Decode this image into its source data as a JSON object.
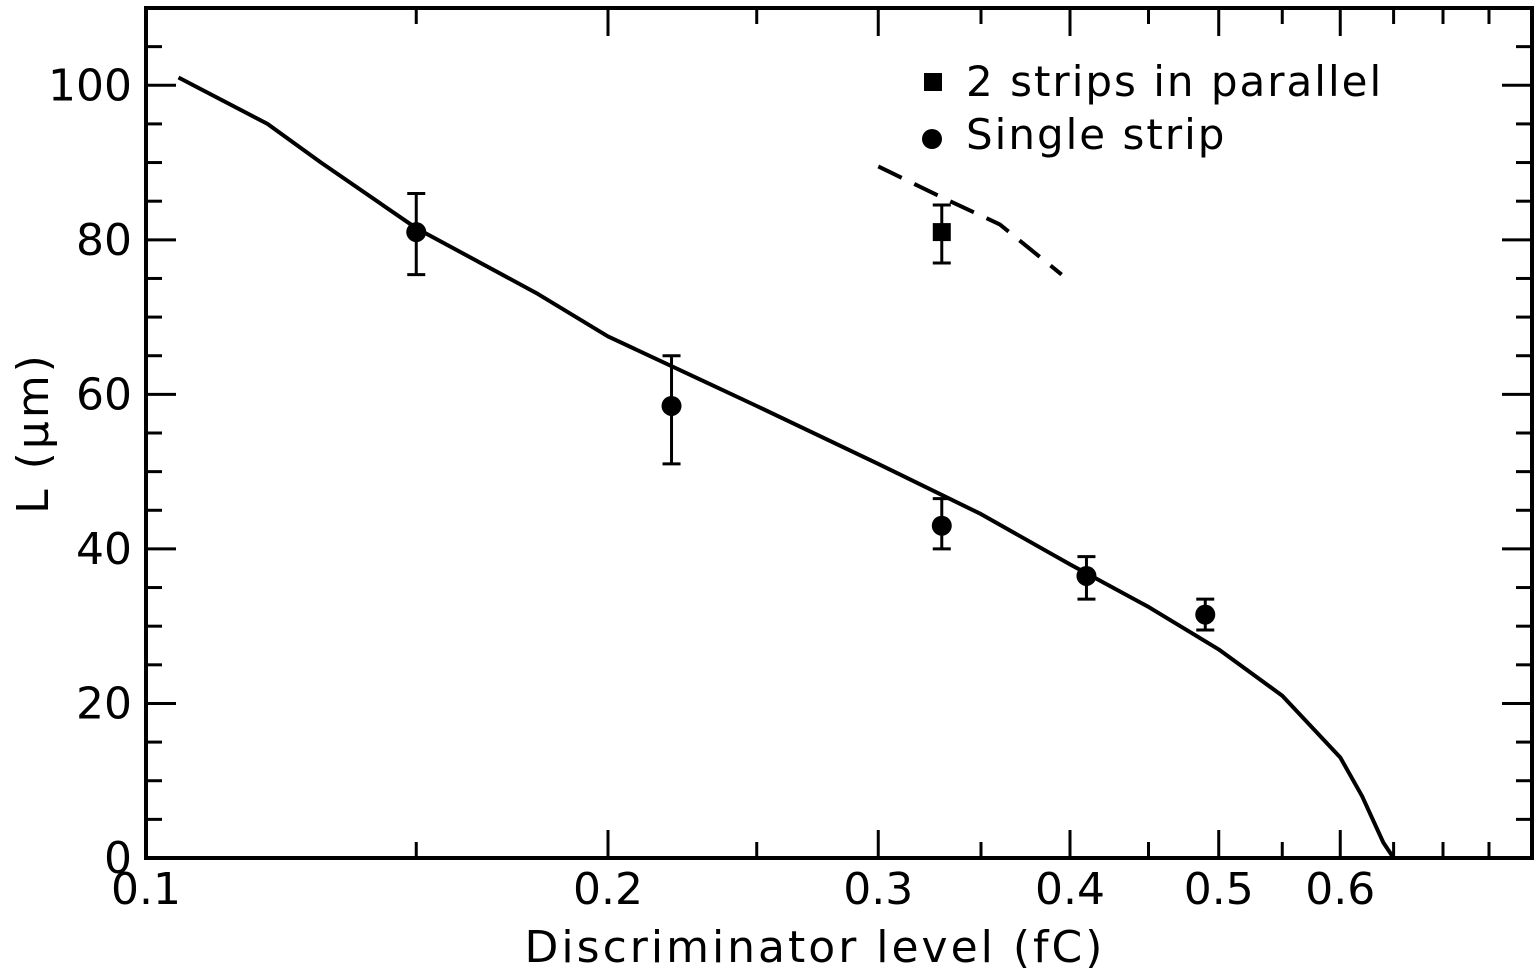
{
  "chart_data": {
    "type": "scatter",
    "xlabel": "Discriminator level  (fC)",
    "ylabel": "L (μm)",
    "xscale": "log",
    "xlim": [
      0.1,
      0.8
    ],
    "ylim": [
      0,
      110
    ],
    "x_tick_labels": [
      "0.1",
      "0.2",
      "0.3",
      "0.4",
      "0.5",
      "0.6"
    ],
    "x_tick_values": [
      0.1,
      0.2,
      0.3,
      0.4,
      0.5,
      0.6
    ],
    "y_tick_labels": [
      "0",
      "20",
      "40",
      "60",
      "80",
      "100"
    ],
    "y_tick_values": [
      0,
      20,
      40,
      60,
      80,
      100
    ],
    "legend_position": "top-right",
    "series": [
      {
        "name": "2 strips in parallel",
        "marker": "square",
        "points": [
          {
            "x": 0.33,
            "y": 81,
            "err_low": 77,
            "err_high": 84.5
          }
        ]
      },
      {
        "name": "Single strip",
        "marker": "circle",
        "points": [
          {
            "x": 0.15,
            "y": 81,
            "err_low": 75.5,
            "err_high": 86
          },
          {
            "x": 0.22,
            "y": 58.5,
            "err_low": 51,
            "err_high": 65
          },
          {
            "x": 0.33,
            "y": 43,
            "err_low": 40,
            "err_high": 46.5
          },
          {
            "x": 0.41,
            "y": 36.5,
            "err_low": 33.5,
            "err_high": 39
          },
          {
            "x": 0.49,
            "y": 31.5,
            "err_low": 29.5,
            "err_high": 33.5
          }
        ]
      }
    ],
    "curves": [
      {
        "style": "solid",
        "points": [
          [
            0.105,
            101
          ],
          [
            0.12,
            95
          ],
          [
            0.13,
            90
          ],
          [
            0.15,
            81.5
          ],
          [
            0.18,
            73
          ],
          [
            0.2,
            67.5
          ],
          [
            0.25,
            58.5
          ],
          [
            0.3,
            51
          ],
          [
            0.35,
            44.5
          ],
          [
            0.4,
            38
          ],
          [
            0.45,
            32.5
          ],
          [
            0.5,
            27
          ],
          [
            0.55,
            21
          ],
          [
            0.6,
            13
          ],
          [
            0.62,
            8
          ],
          [
            0.64,
            2
          ],
          [
            0.65,
            0
          ]
        ]
      },
      {
        "style": "dashed",
        "points": [
          [
            0.3,
            89.5
          ],
          [
            0.33,
            85.5
          ],
          [
            0.36,
            82
          ],
          [
            0.395,
            75.5
          ]
        ]
      }
    ]
  }
}
